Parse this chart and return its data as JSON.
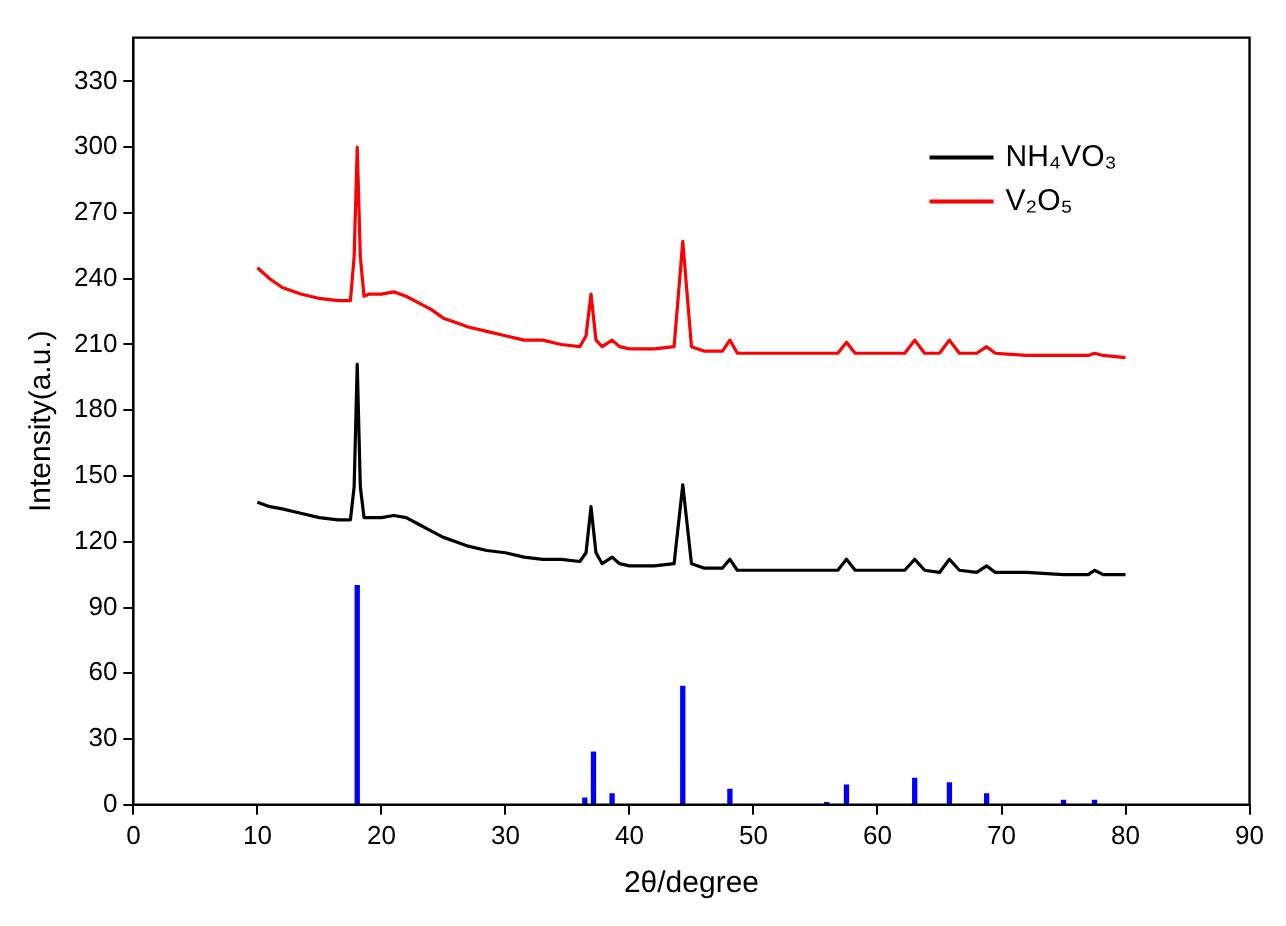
{
  "chart_data": {
    "type": "line",
    "xlabel": "2θ/degree",
    "ylabel": "Intensity(a.u.)",
    "xlim": [
      0,
      90
    ],
    "ylim": [
      0,
      350
    ],
    "xticks": [
      0,
      10,
      20,
      30,
      40,
      50,
      60,
      70,
      80,
      90
    ],
    "yticks": [
      0,
      30,
      60,
      90,
      120,
      150,
      180,
      210,
      240,
      270,
      300,
      330
    ],
    "grid": false,
    "legend": "top right",
    "marker": "none",
    "line_style": "solid",
    "series": [
      {
        "name": "NH₄VO₃",
        "color": "#000000",
        "x": [
          10,
          11,
          12,
          13.5,
          15,
          16.5,
          17.5,
          17.8,
          18.05,
          18.3,
          18.6,
          19,
          20,
          21,
          22,
          23,
          24,
          25,
          26,
          27,
          28.5,
          30,
          31.5,
          33,
          34.5,
          36,
          36.5,
          36.9,
          37.3,
          37.8,
          38.6,
          39.2,
          40,
          42,
          43.6,
          44.3,
          45,
          46,
          47.5,
          48.1,
          48.7,
          50,
          52.5,
          55,
          56.8,
          57.5,
          58.2,
          60,
          62.2,
          63,
          63.8,
          65,
          65.8,
          66.6,
          68,
          68.8,
          69.5,
          72,
          75,
          77,
          77.5,
          78.2,
          80
        ],
        "values": [
          138,
          136,
          135,
          133,
          131,
          130,
          130,
          145,
          201,
          145,
          131,
          131,
          131,
          132,
          131,
          128,
          125,
          122,
          120,
          118,
          116,
          115,
          113,
          112,
          112,
          111,
          115,
          136,
          115,
          110,
          113,
          110,
          109,
          109,
          110,
          146,
          110,
          108,
          108,
          112,
          107,
          107,
          107,
          107,
          107,
          112,
          107,
          107,
          107,
          112,
          107,
          106,
          112,
          107,
          106,
          109,
          106,
          106,
          105,
          105,
          107,
          105,
          105
        ]
      },
      {
        "name": "V₂O₅",
        "color": "#ff0000",
        "x": [
          10,
          11,
          12,
          13.5,
          15,
          16.5,
          17.5,
          17.8,
          18.05,
          18.3,
          18.6,
          19,
          20,
          21,
          22,
          23,
          24,
          25,
          26,
          27,
          28.5,
          30,
          31.5,
          33,
          34.5,
          36,
          36.5,
          36.9,
          37.3,
          37.8,
          38.6,
          39.2,
          40,
          42,
          43.6,
          44.3,
          45,
          46,
          47.5,
          48.1,
          48.7,
          50,
          52.5,
          55,
          56.8,
          57.5,
          58.2,
          60,
          62.2,
          63,
          63.8,
          65,
          65.8,
          66.6,
          68,
          68.8,
          69.5,
          72,
          75,
          77,
          77.5,
          78.2,
          80
        ],
        "values": [
          245,
          240,
          236,
          233,
          231,
          230,
          230,
          250,
          300,
          250,
          232,
          233,
          233,
          234,
          232,
          229,
          226,
          222,
          220,
          218,
          216,
          214,
          212,
          212,
          210,
          209,
          214,
          233,
          212,
          209,
          212,
          209,
          208,
          208,
          209,
          257,
          209,
          207,
          207,
          212,
          206,
          206,
          206,
          206,
          206,
          211,
          206,
          206,
          206,
          212,
          206,
          206,
          212,
          206,
          206,
          209,
          206,
          205,
          205,
          205,
          206,
          205,
          204
        ]
      },
      {
        "type": "bar",
        "color": "#0000ff",
        "x": [
          18.05,
          36.4,
          37.1,
          38.6,
          44.3,
          48.1,
          55.9,
          57.5,
          63,
          65.8,
          68.8,
          75,
          77.5
        ],
        "values": [
          100,
          3,
          24,
          5,
          54,
          7,
          1,
          9,
          12,
          10,
          5,
          2,
          2
        ]
      }
    ]
  }
}
